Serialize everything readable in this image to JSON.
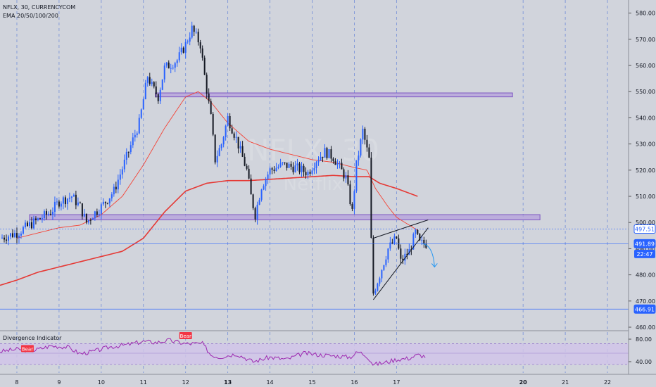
{
  "colors": {
    "background": "#d1d4dc",
    "candle_up": "#2962ff",
    "candle_down": "#131722",
    "ema_fast": "#f44336",
    "ema_slow": "#e53935",
    "zone_fill": "#b39ddb",
    "zone_stroke": "#7e57c2",
    "last_price": "#2962ff",
    "rsi_line": "#9c27b0",
    "rsi_band": "#d1c4e9",
    "bear_label": "#f23645",
    "grid": "#4a6fd6",
    "trendline": "#131722",
    "arrow": "#2196f3"
  },
  "legend": {
    "symbol": "NFLX, 30, CURRENCYCOM",
    "indicator": "EMA 20/50/100/200"
  },
  "watermark": {
    "main": "NFLX, 30",
    "sub": "Netflix"
  },
  "chart_data": {
    "type": "candlestick",
    "y_axis": {
      "range": [
        460,
        585
      ],
      "ticks": [
        460,
        470,
        480,
        490,
        500,
        510,
        520,
        530,
        540,
        550,
        560,
        570,
        580
      ]
    },
    "x_axis": {
      "range": [
        7.6,
        22.5
      ],
      "tick_labels": [
        {
          "x": 8,
          "label": "8"
        },
        {
          "x": 9,
          "label": "9"
        },
        {
          "x": 10,
          "label": "10"
        },
        {
          "x": 11,
          "label": "11"
        },
        {
          "x": 12,
          "label": "12"
        },
        {
          "x": 13,
          "label": "13"
        },
        {
          "x": 14,
          "label": "14"
        },
        {
          "x": 15,
          "label": "15"
        },
        {
          "x": 16,
          "label": "16"
        },
        {
          "x": 17,
          "label": "17"
        },
        {
          "x": 20,
          "label": "20"
        },
        {
          "x": 21,
          "label": "21"
        },
        {
          "x": 22,
          "label": "22"
        }
      ],
      "bold_labels": [
        "13",
        "20"
      ]
    },
    "price_path": [
      [
        7.6,
        494
      ],
      [
        8.0,
        496
      ],
      [
        8.4,
        500
      ],
      [
        8.8,
        504
      ],
      [
        9.0,
        508
      ],
      [
        9.3,
        510
      ],
      [
        9.5,
        506
      ],
      [
        9.65,
        500
      ],
      [
        9.8,
        503
      ],
      [
        10.0,
        506
      ],
      [
        10.3,
        512
      ],
      [
        10.6,
        525
      ],
      [
        10.9,
        538
      ],
      [
        11.1,
        556
      ],
      [
        11.2,
        552
      ],
      [
        11.35,
        548
      ],
      [
        11.5,
        559
      ],
      [
        11.8,
        562
      ],
      [
        12.0,
        568
      ],
      [
        12.15,
        574
      ],
      [
        12.35,
        568
      ],
      [
        12.45,
        556
      ],
      [
        12.6,
        540
      ],
      [
        12.7,
        524
      ],
      [
        12.85,
        530
      ],
      [
        13.0,
        540
      ],
      [
        13.2,
        532
      ],
      [
        13.45,
        520
      ],
      [
        13.55,
        510
      ],
      [
        13.65,
        503
      ],
      [
        13.8,
        514
      ],
      [
        14.0,
        520
      ],
      [
        14.3,
        522
      ],
      [
        14.6,
        521
      ],
      [
        14.9,
        519
      ],
      [
        15.1,
        524
      ],
      [
        15.3,
        527
      ],
      [
        15.5,
        525
      ],
      [
        15.8,
        517
      ],
      [
        15.95,
        504
      ],
      [
        16.05,
        522
      ],
      [
        16.2,
        535
      ],
      [
        16.35,
        524
      ],
      [
        16.4,
        493
      ],
      [
        16.45,
        473
      ],
      [
        16.6,
        480
      ],
      [
        16.8,
        490
      ],
      [
        17.0,
        494
      ],
      [
        17.1,
        485
      ],
      [
        17.3,
        489
      ],
      [
        17.45,
        496
      ],
      [
        17.55,
        492
      ],
      [
        17.7,
        491.9
      ]
    ],
    "ema_fast": [
      [
        8.0,
        494
      ],
      [
        9.0,
        498
      ],
      [
        9.5,
        499
      ],
      [
        10.0,
        503
      ],
      [
        10.5,
        510
      ],
      [
        11.0,
        522
      ],
      [
        11.5,
        536
      ],
      [
        12.0,
        548
      ],
      [
        12.3,
        550
      ],
      [
        12.6,
        546
      ],
      [
        13.0,
        538
      ],
      [
        13.5,
        531
      ],
      [
        14.0,
        528
      ],
      [
        14.5,
        526
      ],
      [
        15.0,
        524
      ],
      [
        15.5,
        523
      ],
      [
        16.0,
        521
      ],
      [
        16.3,
        520
      ],
      [
        16.5,
        513
      ],
      [
        16.8,
        506
      ],
      [
        17.0,
        502
      ],
      [
        17.5,
        497
      ]
    ],
    "ema_slow": [
      [
        7.6,
        476
      ],
      [
        8.0,
        478
      ],
      [
        8.5,
        481
      ],
      [
        9.0,
        483
      ],
      [
        9.5,
        485
      ],
      [
        10.0,
        487
      ],
      [
        10.5,
        489
      ],
      [
        11.0,
        494
      ],
      [
        11.5,
        504
      ],
      [
        12.0,
        512
      ],
      [
        12.5,
        515
      ],
      [
        13.0,
        516
      ],
      [
        13.5,
        516
      ],
      [
        14.0,
        516.5
      ],
      [
        14.5,
        517
      ],
      [
        15.0,
        517.5
      ],
      [
        15.5,
        518
      ],
      [
        16.0,
        517.5
      ],
      [
        16.35,
        517.5
      ],
      [
        16.6,
        515
      ],
      [
        17.0,
        513
      ],
      [
        17.5,
        510
      ]
    ],
    "zones": [
      {
        "x1": 11.28,
        "x2": 19.75,
        "y_low": 548,
        "y_high": 549.5
      },
      {
        "x1": 8.3,
        "x2": 20.4,
        "y_low": 501,
        "y_high": 503
      }
    ],
    "wedge": {
      "upper": [
        [
          16.45,
          494
        ],
        [
          17.75,
          501
        ]
      ],
      "lower": [
        [
          16.45,
          470.5
        ],
        [
          17.75,
          498
        ]
      ]
    },
    "projection_arrow": [
      [
        17.6,
        492
      ],
      [
        17.9,
        483
      ]
    ],
    "price_labels": [
      {
        "value": 497.51,
        "text": "497.51",
        "style": "outline"
      },
      {
        "value": 491.89,
        "text": "491.89",
        "style": "filled"
      },
      {
        "value": 466.91,
        "text": "466.91",
        "style": "filled"
      }
    ],
    "countdown": {
      "text": "22:47",
      "value": 488
    }
  },
  "rsi_panel": {
    "title": "Divergence Indicator",
    "y_ticks": [
      {
        "value": 80,
        "label": "80.00"
      },
      {
        "value": 40,
        "label": "40.00"
      }
    ],
    "y_range": [
      20,
      95
    ],
    "band": [
      35,
      72
    ],
    "mid": 55,
    "series": [
      [
        7.6,
        58
      ],
      [
        8.0,
        62
      ],
      [
        8.4,
        60
      ],
      [
        8.8,
        68
      ],
      [
        9.2,
        66
      ],
      [
        9.5,
        54
      ],
      [
        9.8,
        58
      ],
      [
        10.2,
        66
      ],
      [
        10.6,
        70
      ],
      [
        11.0,
        76
      ],
      [
        11.3,
        74
      ],
      [
        11.6,
        78
      ],
      [
        12.0,
        72
      ],
      [
        12.4,
        72
      ],
      [
        12.6,
        52
      ],
      [
        12.8,
        48
      ],
      [
        13.2,
        54
      ],
      [
        13.6,
        40
      ],
      [
        14.0,
        48
      ],
      [
        14.4,
        44
      ],
      [
        14.8,
        55
      ],
      [
        15.2,
        52
      ],
      [
        15.6,
        50
      ],
      [
        15.9,
        48
      ],
      [
        16.1,
        58
      ],
      [
        16.3,
        50
      ],
      [
        16.45,
        35
      ],
      [
        16.7,
        38
      ],
      [
        17.0,
        44
      ],
      [
        17.3,
        46
      ],
      [
        17.5,
        52
      ],
      [
        17.7,
        49
      ]
    ],
    "labels": [
      {
        "x": 8.25,
        "value": 62,
        "text": "Bear"
      },
      {
        "x": 12.0,
        "value": 85,
        "text": "Bear"
      }
    ]
  }
}
